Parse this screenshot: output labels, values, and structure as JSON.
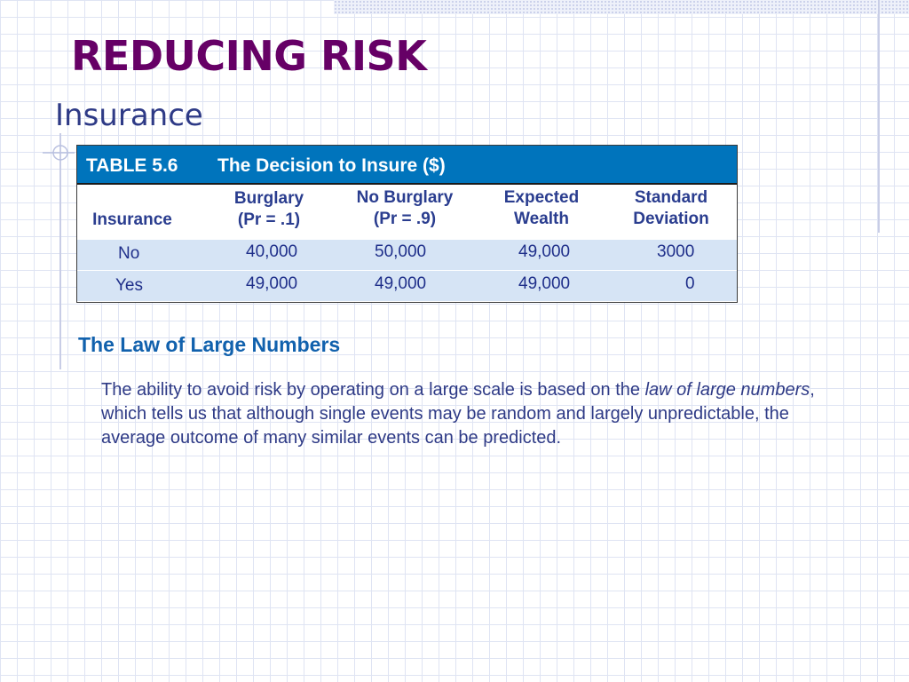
{
  "slide": {
    "title": "REDUCING RISK",
    "subtitle": "Insurance",
    "colors": {
      "title": "#660066",
      "subtitle": "#2e3a86",
      "table_header_bg": "#0074bc",
      "row_bg": "#d6e4f5",
      "column_header": "#2a3d8f",
      "section_heading": "#1161ad"
    }
  },
  "table": {
    "label": "TABLE 5.6",
    "caption": "The Decision to Insure ($)",
    "columns": [
      {
        "line1": "",
        "line2": "Insurance"
      },
      {
        "line1": "Burglary",
        "line2": "(Pr = .1)"
      },
      {
        "line1": "No Burglary",
        "line2": "(Pr = .9)"
      },
      {
        "line1": "Expected",
        "line2": "Wealth"
      },
      {
        "line1": "Standard",
        "line2": "Deviation"
      }
    ],
    "rows": [
      {
        "insurance": "No",
        "burglary": "40,000",
        "no_burglary": "50,000",
        "expected_wealth": "49,000",
        "std_dev": "3000"
      },
      {
        "insurance": "Yes",
        "burglary": "49,000",
        "no_burglary": "49,000",
        "expected_wealth": "49,000",
        "std_dev": "0"
      }
    ]
  },
  "section": {
    "heading": "The Law of Large Numbers",
    "text_before": "The ability to avoid risk by operating on a large scale is based on the ",
    "text_italic": "law of large numbers",
    "text_after": ", which tells us that although single events may be random and largely unpredictable, the average outcome of many similar events can be predicted."
  }
}
